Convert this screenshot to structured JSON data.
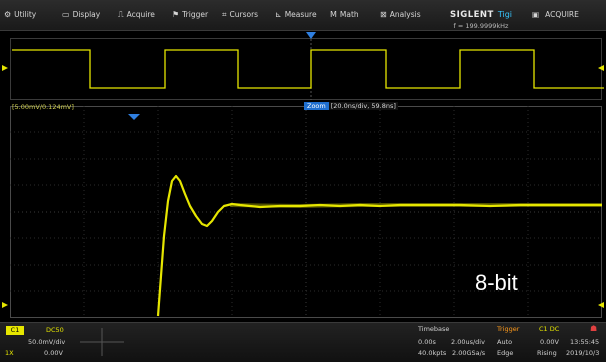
{
  "menu": [
    {
      "label": "Utility",
      "icon": "gear-icon",
      "glyph": "⚙"
    },
    {
      "label": "Display",
      "icon": "display-icon",
      "glyph": "▭"
    },
    {
      "label": "Acquire",
      "icon": "acquire-icon",
      "glyph": "⎍"
    },
    {
      "label": "Trigger",
      "icon": "trigger-flag-icon",
      "glyph": "⚑"
    },
    {
      "label": "Cursors",
      "icon": "cursors-icon",
      "glyph": "⌗"
    },
    {
      "label": "Measure",
      "icon": "measure-icon",
      "glyph": "⊾"
    },
    {
      "label": "Math",
      "icon": "math-icon",
      "glyph": "M"
    },
    {
      "label": "Analysis",
      "icon": "analysis-icon",
      "glyph": "⊠"
    }
  ],
  "brand": {
    "logo": "SIGLENT",
    "tag": "Tigi",
    "freq": "f = 199.9999kHz"
  },
  "acquire_status": {
    "icon": "stop-icon",
    "glyph": "▣",
    "label": "ACQUIRE"
  },
  "zoom": {
    "scale_label": "[5.00mV/0.124mV]",
    "badge": "Zoom",
    "info": "[20.0ns/div, 59.8ns]"
  },
  "annotation": "8-bit",
  "channel": {
    "badge": "C1",
    "coupling": "DC50",
    "vdiv": "50.0mV/div",
    "offset": "0.00V",
    "label": "1X"
  },
  "timebase": {
    "title": "Timebase",
    "delay": "0.00s",
    "hdiv": "2.00us/div",
    "points": "40.0kpts",
    "srate": "2.00GSa/s"
  },
  "trigger": {
    "title": "Trigger",
    "source": "C1 DC",
    "mode": "Auto",
    "level": "0.00V",
    "type": "Edge",
    "slope": "Rising"
  },
  "clock": {
    "time": "13:55:45",
    "date": "2019/10/3"
  },
  "colors": {
    "trace": "#e6e600",
    "grid": "#3a3a3a",
    "accent": "#1f6fd0"
  }
}
